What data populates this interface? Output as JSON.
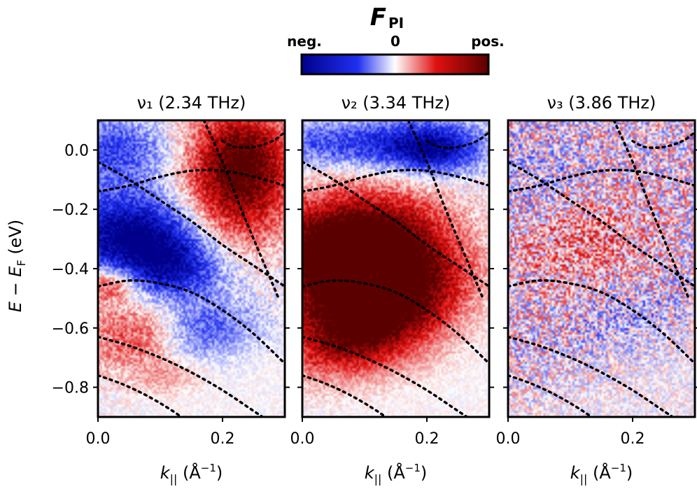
{
  "colorbar": {
    "title_main": "F",
    "title_sub": "PI",
    "left_label": "neg.",
    "center_label": "0",
    "right_label": "pos.",
    "colors": {
      "negative": "#0a14c8",
      "zero": "#ffffff",
      "positive": "#e01010",
      "max_negative": "#00008b",
      "max_positive": "#5a0000"
    }
  },
  "y_axis_label": {
    "main": "E",
    "minus": " − ",
    "sub_main": "E",
    "sub": "F",
    "unit": " (eV)"
  },
  "x_axis_label": {
    "main": "k",
    "sub": "||",
    "unit": " (Å",
    "exp": "−1",
    "close": ")"
  },
  "chart_data": [
    {
      "type": "heatmap",
      "title": "ν₁ (2.34 THz)",
      "xlim": [
        0.0,
        0.3
      ],
      "ylim": [
        -0.9,
        0.1
      ],
      "xticks": [
        0.0,
        0.2
      ],
      "yticks": [
        0.0,
        -0.2,
        -0.4,
        -0.6,
        -0.8
      ],
      "xtick_labels": [
        "0.0",
        "0.2"
      ],
      "ytick_labels": [
        "0.0",
        "−0.2",
        "−0.4",
        "−0.6",
        "−0.8"
      ],
      "blobs": [
        {
          "kx": 0.23,
          "e": -0.02,
          "amp": 0.95,
          "sk": 0.06,
          "se": 0.12
        },
        {
          "kx": 0.22,
          "e": -0.2,
          "amp": 0.55,
          "sk": 0.06,
          "se": 0.12
        },
        {
          "kx": 0.05,
          "e": -0.28,
          "amp": -1.0,
          "sk": 0.08,
          "se": 0.1
        },
        {
          "kx": 0.12,
          "e": -0.4,
          "amp": -0.7,
          "sk": 0.06,
          "se": 0.08
        },
        {
          "kx": 0.02,
          "e": 0.0,
          "amp": -0.55,
          "sk": 0.07,
          "se": 0.08
        },
        {
          "kx": 0.18,
          "e": -0.62,
          "amp": -0.55,
          "sk": 0.06,
          "se": 0.08
        },
        {
          "kx": 0.02,
          "e": -0.45,
          "amp": 0.6,
          "sk": 0.03,
          "se": 0.04
        },
        {
          "kx": 0.06,
          "e": -0.62,
          "amp": 0.45,
          "sk": 0.06,
          "se": 0.1
        },
        {
          "kx": 0.12,
          "e": -0.78,
          "amp": 0.4,
          "sk": 0.04,
          "se": 0.05
        }
      ],
      "noise": 0.22,
      "band_lines": [
        {
          "x": [
            0.0,
            0.05,
            0.1,
            0.15,
            0.2,
            0.25,
            0.3
          ],
          "y": [
            -0.04,
            -0.1,
            -0.17,
            -0.24,
            -0.32,
            -0.39,
            -0.46
          ]
        },
        {
          "x": [
            0.0,
            0.05,
            0.1,
            0.15,
            0.2,
            0.25,
            0.3
          ],
          "y": [
            -0.14,
            -0.12,
            -0.09,
            -0.07,
            -0.07,
            -0.09,
            -0.12
          ]
        },
        {
          "x": [
            0.17,
            0.2,
            0.23,
            0.26,
            0.29
          ],
          "y": [
            0.1,
            -0.04,
            -0.2,
            -0.35,
            -0.5
          ]
        },
        {
          "x": [
            0.2,
            0.22,
            0.25,
            0.28,
            0.3
          ],
          "y": [
            0.03,
            0.01,
            0.01,
            0.03,
            0.06
          ]
        },
        {
          "x": [
            0.0,
            0.05,
            0.1,
            0.15,
            0.2,
            0.25,
            0.3
          ],
          "y": [
            -0.46,
            -0.44,
            -0.45,
            -0.48,
            -0.54,
            -0.62,
            -0.72
          ]
        },
        {
          "x": [
            0.0,
            0.05,
            0.1,
            0.15,
            0.2,
            0.25,
            0.3
          ],
          "y": [
            -0.63,
            -0.66,
            -0.7,
            -0.75,
            -0.81,
            -0.88,
            -0.95
          ]
        },
        {
          "x": [
            0.0,
            0.04,
            0.08,
            0.12,
            0.16
          ],
          "y": [
            -0.76,
            -0.79,
            -0.83,
            -0.88,
            -0.94
          ]
        }
      ]
    },
    {
      "type": "heatmap",
      "title": "ν₂ (3.34 THz)",
      "xlim": [
        0.0,
        0.3
      ],
      "ylim": [
        -0.9,
        0.1
      ],
      "xticks": [
        0.0,
        0.2
      ],
      "yticks": [
        0.0,
        -0.2,
        -0.4,
        -0.6,
        -0.8
      ],
      "xtick_labels": [
        "0.0",
        "0.2"
      ],
      "ytick_labels": [
        "0.0",
        "−0.2",
        "−0.4",
        "−0.6",
        "−0.8"
      ],
      "blobs": [
        {
          "kx": 0.1,
          "e": 0.02,
          "amp": -0.6,
          "sk": 0.12,
          "se": 0.06
        },
        {
          "kx": 0.21,
          "e": 0.0,
          "amp": -0.7,
          "sk": 0.05,
          "se": 0.06
        },
        {
          "kx": 0.04,
          "e": -0.36,
          "amp": 1.0,
          "sk": 0.09,
          "se": 0.13
        },
        {
          "kx": 0.13,
          "e": -0.3,
          "amp": 0.75,
          "sk": 0.08,
          "se": 0.12
        },
        {
          "kx": 0.2,
          "e": -0.45,
          "amp": 0.5,
          "sk": 0.06,
          "se": 0.1
        },
        {
          "kx": 0.14,
          "e": -0.62,
          "amp": 0.75,
          "sk": 0.07,
          "se": 0.12
        },
        {
          "kx": 0.05,
          "e": -0.62,
          "amp": 0.6,
          "sk": 0.06,
          "se": 0.12
        }
      ],
      "noise": 0.2,
      "band_lines": [
        {
          "x": [
            0.0,
            0.05,
            0.1,
            0.15,
            0.2,
            0.25,
            0.3
          ],
          "y": [
            -0.04,
            -0.1,
            -0.17,
            -0.24,
            -0.32,
            -0.39,
            -0.46
          ]
        },
        {
          "x": [
            0.0,
            0.05,
            0.1,
            0.15,
            0.2,
            0.25,
            0.3
          ],
          "y": [
            -0.14,
            -0.12,
            -0.09,
            -0.07,
            -0.07,
            -0.09,
            -0.12
          ]
        },
        {
          "x": [
            0.17,
            0.2,
            0.23,
            0.26,
            0.29
          ],
          "y": [
            0.1,
            -0.04,
            -0.2,
            -0.35,
            -0.5
          ]
        },
        {
          "x": [
            0.2,
            0.22,
            0.25,
            0.28,
            0.3
          ],
          "y": [
            0.03,
            0.01,
            0.01,
            0.03,
            0.06
          ]
        },
        {
          "x": [
            0.0,
            0.05,
            0.1,
            0.15,
            0.2,
            0.25,
            0.3
          ],
          "y": [
            -0.46,
            -0.44,
            -0.45,
            -0.48,
            -0.54,
            -0.62,
            -0.72
          ]
        },
        {
          "x": [
            0.0,
            0.05,
            0.1,
            0.15,
            0.2,
            0.25,
            0.3
          ],
          "y": [
            -0.63,
            -0.66,
            -0.7,
            -0.75,
            -0.81,
            -0.88,
            -0.95
          ]
        },
        {
          "x": [
            0.0,
            0.04,
            0.08,
            0.12,
            0.16
          ],
          "y": [
            -0.76,
            -0.79,
            -0.83,
            -0.88,
            -0.94
          ]
        }
      ]
    },
    {
      "type": "heatmap",
      "title": "ν₃ (3.86 THz)",
      "xlim": [
        0.0,
        0.3
      ],
      "ylim": [
        -0.9,
        0.1
      ],
      "xticks": [
        0.0,
        0.2
      ],
      "yticks": [
        0.0,
        -0.2,
        -0.4,
        -0.6,
        -0.8
      ],
      "xtick_labels": [
        "0.0",
        "0.2"
      ],
      "ytick_labels": [
        "0.0",
        "−0.2",
        "−0.4",
        "−0.6",
        "−0.8"
      ],
      "blobs": [
        {
          "kx": 0.12,
          "e": -0.3,
          "amp": 0.28,
          "sk": 0.08,
          "se": 0.12
        },
        {
          "kx": 0.05,
          "e": -0.1,
          "amp": -0.15,
          "sk": 0.08,
          "se": 0.1
        },
        {
          "kx": 0.2,
          "e": -0.58,
          "amp": -0.18,
          "sk": 0.06,
          "se": 0.1
        }
      ],
      "noise": 0.5,
      "band_lines": [
        {
          "x": [
            0.0,
            0.05,
            0.1,
            0.15,
            0.2,
            0.25,
            0.3
          ],
          "y": [
            -0.04,
            -0.1,
            -0.17,
            -0.24,
            -0.32,
            -0.39,
            -0.46
          ]
        },
        {
          "x": [
            0.0,
            0.05,
            0.1,
            0.15,
            0.2,
            0.25,
            0.3
          ],
          "y": [
            -0.14,
            -0.12,
            -0.09,
            -0.07,
            -0.07,
            -0.09,
            -0.12
          ]
        },
        {
          "x": [
            0.17,
            0.2,
            0.23,
            0.26,
            0.29
          ],
          "y": [
            0.1,
            -0.04,
            -0.2,
            -0.35,
            -0.5
          ]
        },
        {
          "x": [
            0.2,
            0.22,
            0.25,
            0.28,
            0.3
          ],
          "y": [
            0.03,
            0.01,
            0.01,
            0.03,
            0.06
          ]
        },
        {
          "x": [
            0.0,
            0.05,
            0.1,
            0.15,
            0.2,
            0.25,
            0.3
          ],
          "y": [
            -0.46,
            -0.44,
            -0.45,
            -0.48,
            -0.54,
            -0.62,
            -0.72
          ]
        },
        {
          "x": [
            0.0,
            0.05,
            0.1,
            0.15,
            0.2,
            0.25,
            0.3
          ],
          "y": [
            -0.63,
            -0.66,
            -0.7,
            -0.75,
            -0.81,
            -0.88,
            -0.95
          ]
        },
        {
          "x": [
            0.0,
            0.04,
            0.08,
            0.12,
            0.16
          ],
          "y": [
            -0.76,
            -0.79,
            -0.83,
            -0.88,
            -0.94
          ]
        }
      ]
    }
  ]
}
